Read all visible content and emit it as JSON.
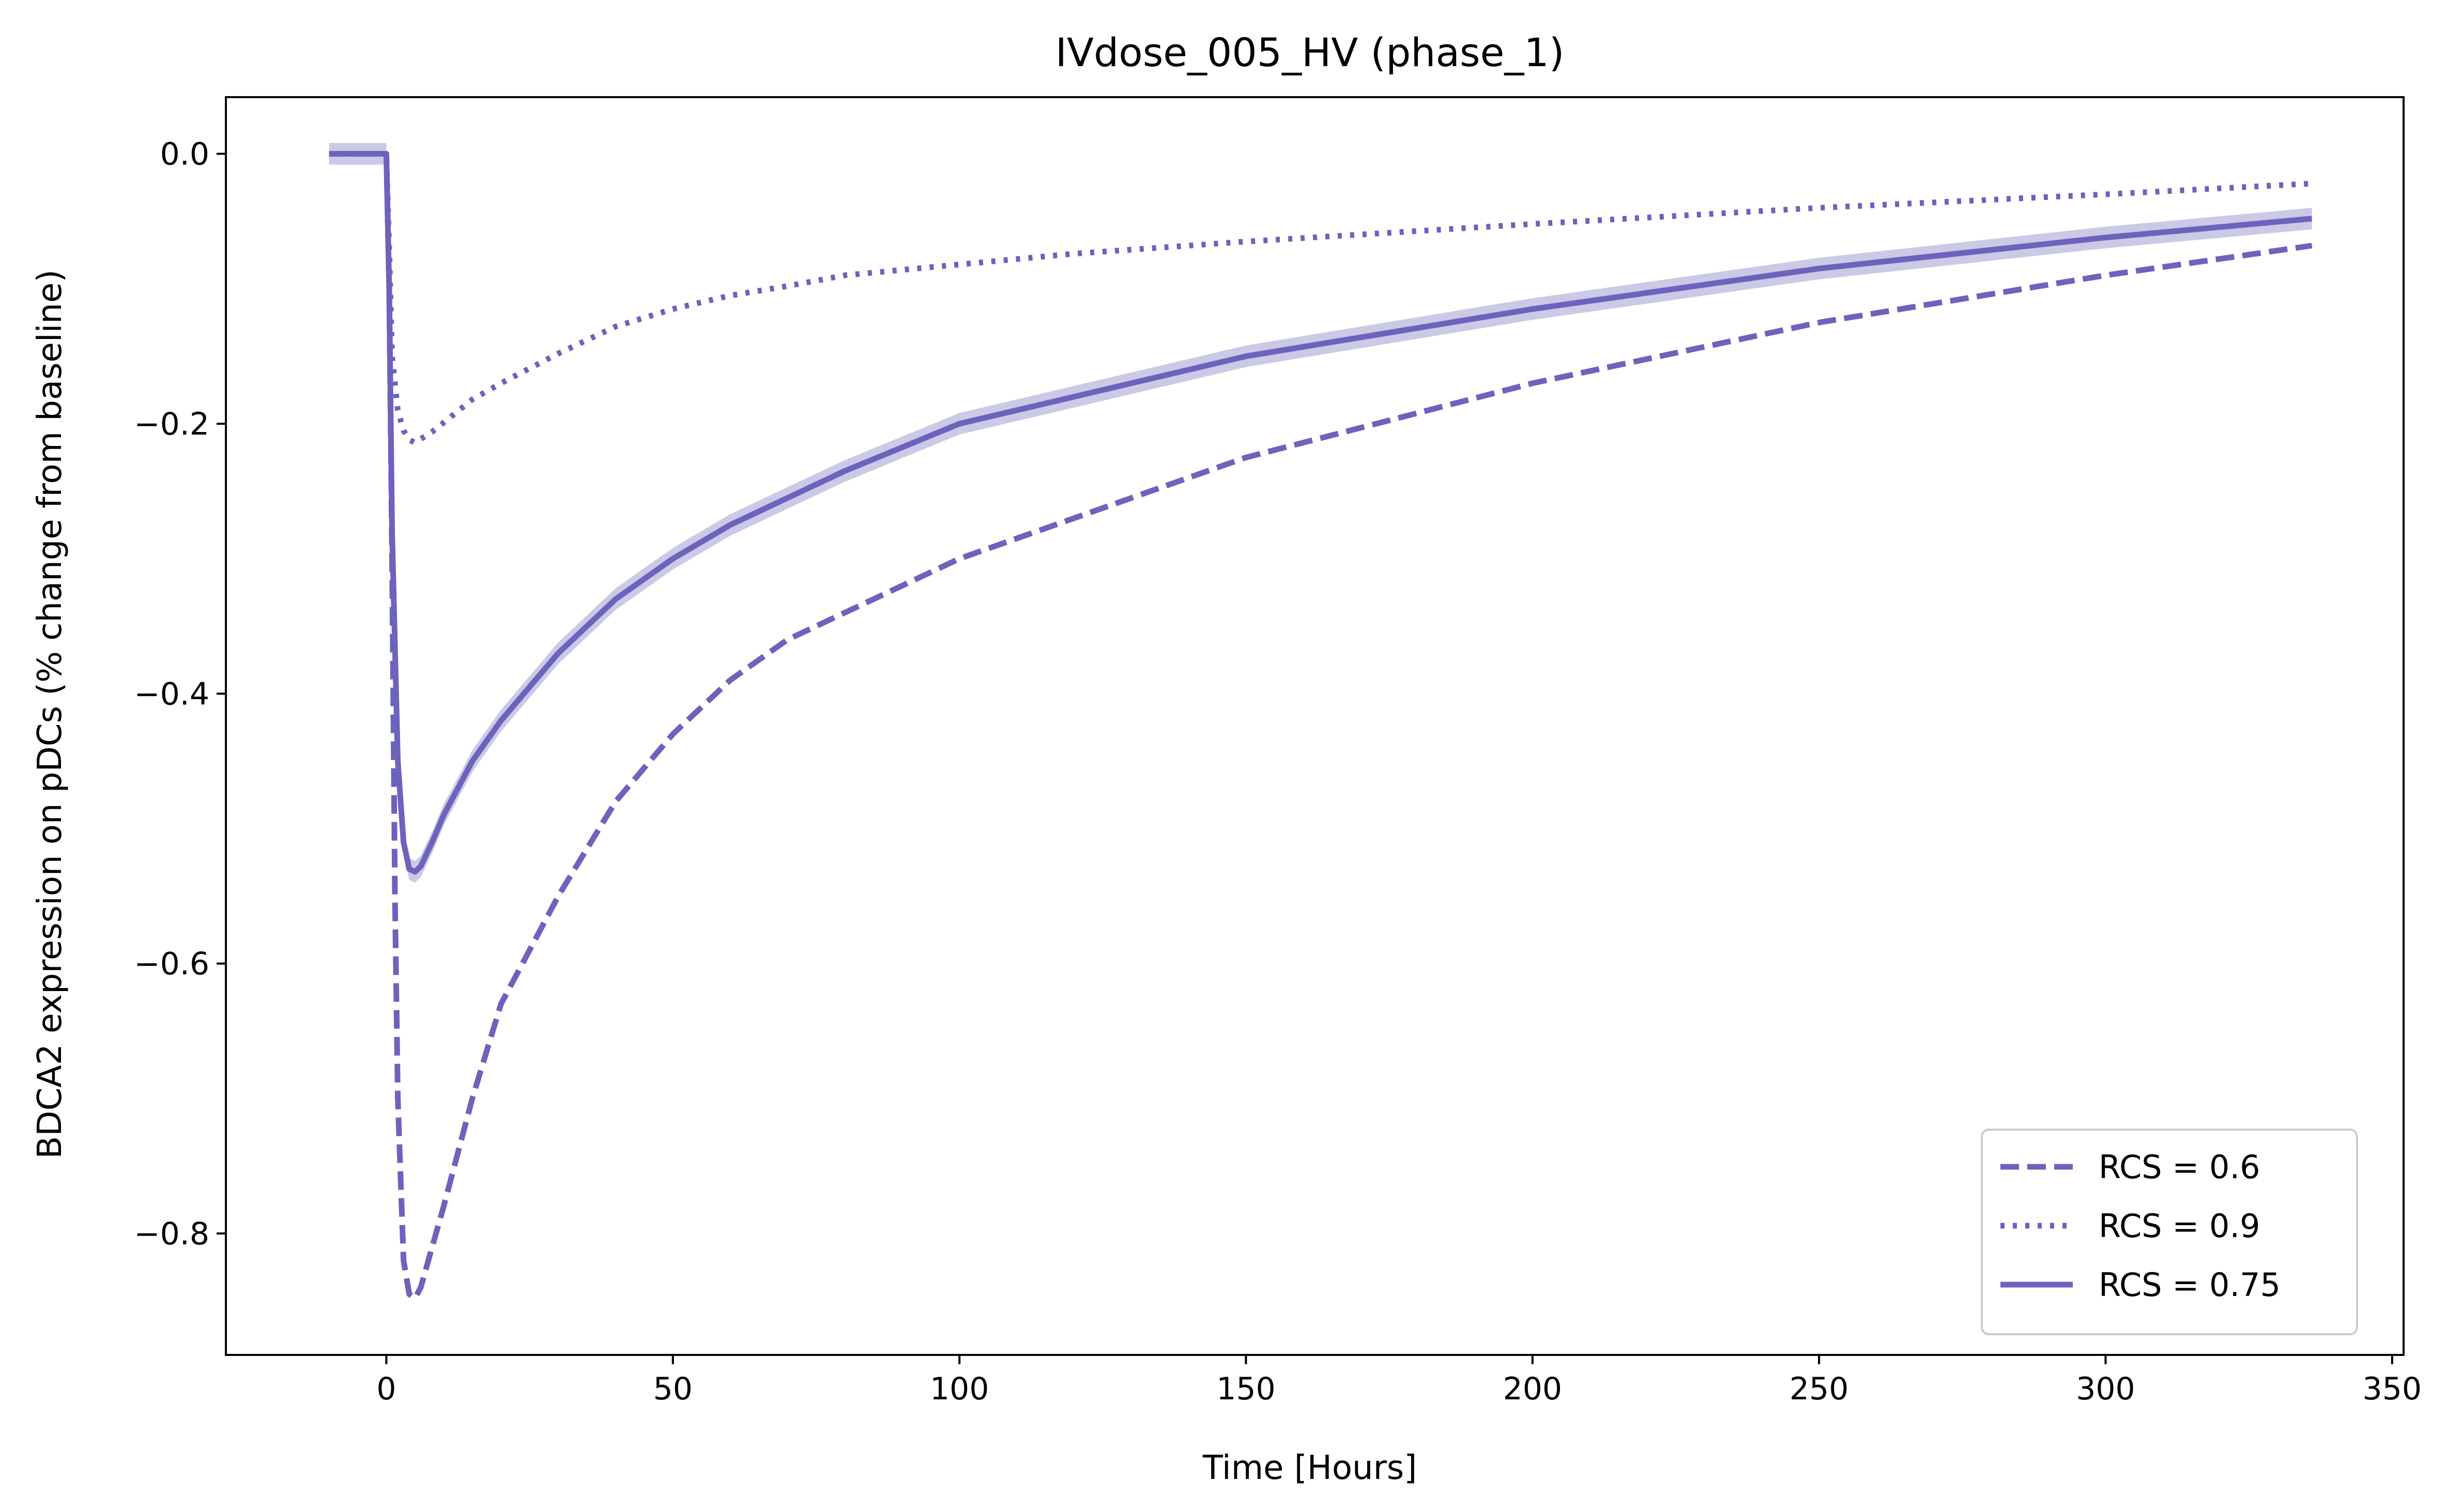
{
  "chart_data": {
    "type": "line",
    "title": "IVdose_005_HV (phase_1)",
    "xlabel": "Time [Hours]",
    "ylabel": "BDCA2 expression on pDCs (% change from baseline)",
    "xlim": [
      -28,
      352
    ],
    "ylim": [
      -0.89,
      0.042
    ],
    "xticks": [
      0,
      50,
      100,
      150,
      200,
      250,
      300,
      350
    ],
    "yticks": [
      0.0,
      -0.2,
      -0.4,
      -0.6,
      -0.8
    ],
    "xtick_labels": [
      "0",
      "50",
      "100",
      "150",
      "200",
      "250",
      "300",
      "350"
    ],
    "ytick_labels": [
      "0.0",
      "−0.2",
      "−0.4",
      "−0.6",
      "−0.8"
    ],
    "grid": false,
    "legend_position": "lower-right",
    "line_color": "#6c63bd",
    "band_color": "#b7b2dd",
    "series": [
      {
        "name": "RCS = 0.6",
        "style": "dashed",
        "x": [
          -10,
          0,
          0.5,
          1,
          1.5,
          2,
          3,
          4,
          5,
          6,
          8,
          10,
          15,
          20,
          30,
          40,
          50,
          60,
          70,
          80,
          100,
          120,
          150,
          200,
          250,
          300,
          336
        ],
        "y": [
          0,
          0,
          -0.1,
          -0.3,
          -0.55,
          -0.7,
          -0.82,
          -0.845,
          -0.848,
          -0.84,
          -0.81,
          -0.78,
          -0.7,
          -0.63,
          -0.55,
          -0.48,
          -0.43,
          -0.39,
          -0.36,
          -0.34,
          -0.3,
          -0.27,
          -0.225,
          -0.17,
          -0.125,
          -0.09,
          -0.068
        ]
      },
      {
        "name": "RCS = 0.9",
        "style": "dotted",
        "x": [
          -10,
          0,
          0.5,
          1,
          2,
          3,
          4,
          5,
          8,
          15,
          20,
          30,
          40,
          50,
          60,
          70,
          80,
          100,
          120,
          150,
          200,
          250,
          300,
          336
        ],
        "y": [
          0,
          0,
          -0.07,
          -0.15,
          -0.19,
          -0.205,
          -0.212,
          -0.214,
          -0.206,
          -0.182,
          -0.17,
          -0.148,
          -0.128,
          -0.115,
          -0.105,
          -0.098,
          -0.09,
          -0.082,
          -0.074,
          -0.065,
          -0.052,
          -0.04,
          -0.03,
          -0.022
        ]
      },
      {
        "name": "RCS = 0.75",
        "style": "solid",
        "band_halfwidth": 0.008,
        "x": [
          -10,
          0,
          0.5,
          1,
          2,
          3,
          4,
          5,
          6,
          8,
          10,
          15,
          20,
          30,
          40,
          50,
          60,
          70,
          80,
          100,
          120,
          150,
          200,
          250,
          300,
          336
        ],
        "y": [
          0,
          0,
          -0.1,
          -0.28,
          -0.45,
          -0.51,
          -0.53,
          -0.532,
          -0.528,
          -0.51,
          -0.49,
          -0.45,
          -0.42,
          -0.37,
          -0.33,
          -0.3,
          -0.275,
          -0.255,
          -0.235,
          -0.2,
          -0.18,
          -0.15,
          -0.115,
          -0.085,
          -0.062,
          -0.048
        ]
      }
    ]
  }
}
